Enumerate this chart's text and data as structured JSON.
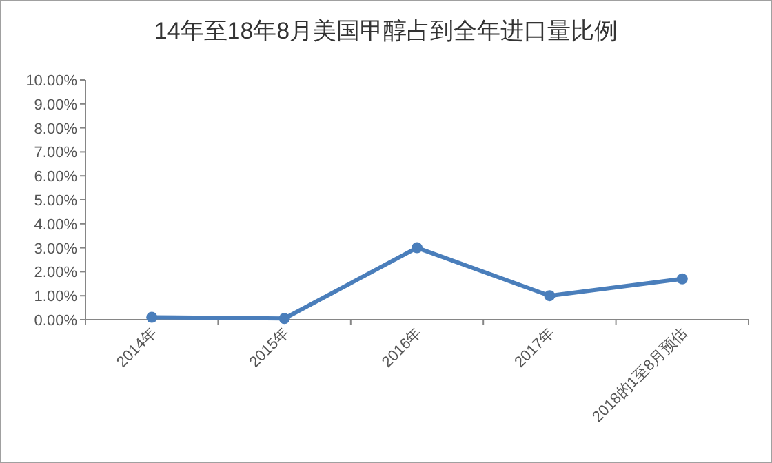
{
  "chart_data": {
    "type": "line",
    "title": "14年至18年8月美国甲醇占到全年进口量比例",
    "categories": [
      "2014年",
      "2015年",
      "2016年",
      "2017年",
      "2018的1至8月预估"
    ],
    "series": [
      {
        "color": "#4a7ebb",
        "values": [
          0.1,
          0.05,
          3.0,
          1.0,
          1.7
        ]
      }
    ],
    "ylim": [
      0,
      10
    ],
    "yticks": [
      {
        "value": 0,
        "label": "0.00%"
      },
      {
        "value": 1,
        "label": "1.00%"
      },
      {
        "value": 2,
        "label": "2.00%"
      },
      {
        "value": 3,
        "label": "3.00%"
      },
      {
        "value": 4,
        "label": "4.00%"
      },
      {
        "value": 5,
        "label": "5.00%"
      },
      {
        "value": 6,
        "label": "6.00%"
      },
      {
        "value": 7,
        "label": "7.00%"
      },
      {
        "value": 8,
        "label": "8.00%"
      },
      {
        "value": 9,
        "label": "9.00%"
      },
      {
        "value": 10,
        "label": "10.00%"
      }
    ],
    "grid": false,
    "marker": "circle",
    "line_style": "solid"
  }
}
